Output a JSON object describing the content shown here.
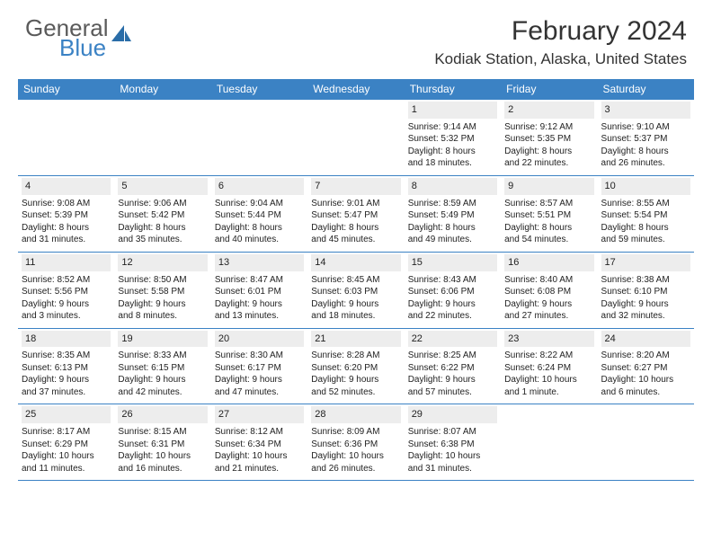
{
  "logo": {
    "text1": "General",
    "text2": "Blue"
  },
  "title": "February 2024",
  "location": "Kodiak Station, Alaska, United States",
  "colors": {
    "header_bg": "#3b82c4",
    "daynum_bg": "#ededed",
    "text": "#222222",
    "logo_gray": "#5a5a5a",
    "logo_blue": "#3b82c4"
  },
  "weekdays": [
    "Sunday",
    "Monday",
    "Tuesday",
    "Wednesday",
    "Thursday",
    "Friday",
    "Saturday"
  ],
  "weeks": [
    [
      {
        "empty": true
      },
      {
        "empty": true
      },
      {
        "empty": true
      },
      {
        "empty": true
      },
      {
        "day": "1",
        "sunrise": "Sunrise: 9:14 AM",
        "sunset": "Sunset: 5:32 PM",
        "dl1": "Daylight: 8 hours",
        "dl2": "and 18 minutes."
      },
      {
        "day": "2",
        "sunrise": "Sunrise: 9:12 AM",
        "sunset": "Sunset: 5:35 PM",
        "dl1": "Daylight: 8 hours",
        "dl2": "and 22 minutes."
      },
      {
        "day": "3",
        "sunrise": "Sunrise: 9:10 AM",
        "sunset": "Sunset: 5:37 PM",
        "dl1": "Daylight: 8 hours",
        "dl2": "and 26 minutes."
      }
    ],
    [
      {
        "day": "4",
        "sunrise": "Sunrise: 9:08 AM",
        "sunset": "Sunset: 5:39 PM",
        "dl1": "Daylight: 8 hours",
        "dl2": "and 31 minutes."
      },
      {
        "day": "5",
        "sunrise": "Sunrise: 9:06 AM",
        "sunset": "Sunset: 5:42 PM",
        "dl1": "Daylight: 8 hours",
        "dl2": "and 35 minutes."
      },
      {
        "day": "6",
        "sunrise": "Sunrise: 9:04 AM",
        "sunset": "Sunset: 5:44 PM",
        "dl1": "Daylight: 8 hours",
        "dl2": "and 40 minutes."
      },
      {
        "day": "7",
        "sunrise": "Sunrise: 9:01 AM",
        "sunset": "Sunset: 5:47 PM",
        "dl1": "Daylight: 8 hours",
        "dl2": "and 45 minutes."
      },
      {
        "day": "8",
        "sunrise": "Sunrise: 8:59 AM",
        "sunset": "Sunset: 5:49 PM",
        "dl1": "Daylight: 8 hours",
        "dl2": "and 49 minutes."
      },
      {
        "day": "9",
        "sunrise": "Sunrise: 8:57 AM",
        "sunset": "Sunset: 5:51 PM",
        "dl1": "Daylight: 8 hours",
        "dl2": "and 54 minutes."
      },
      {
        "day": "10",
        "sunrise": "Sunrise: 8:55 AM",
        "sunset": "Sunset: 5:54 PM",
        "dl1": "Daylight: 8 hours",
        "dl2": "and 59 minutes."
      }
    ],
    [
      {
        "day": "11",
        "sunrise": "Sunrise: 8:52 AM",
        "sunset": "Sunset: 5:56 PM",
        "dl1": "Daylight: 9 hours",
        "dl2": "and 3 minutes."
      },
      {
        "day": "12",
        "sunrise": "Sunrise: 8:50 AM",
        "sunset": "Sunset: 5:58 PM",
        "dl1": "Daylight: 9 hours",
        "dl2": "and 8 minutes."
      },
      {
        "day": "13",
        "sunrise": "Sunrise: 8:47 AM",
        "sunset": "Sunset: 6:01 PM",
        "dl1": "Daylight: 9 hours",
        "dl2": "and 13 minutes."
      },
      {
        "day": "14",
        "sunrise": "Sunrise: 8:45 AM",
        "sunset": "Sunset: 6:03 PM",
        "dl1": "Daylight: 9 hours",
        "dl2": "and 18 minutes."
      },
      {
        "day": "15",
        "sunrise": "Sunrise: 8:43 AM",
        "sunset": "Sunset: 6:06 PM",
        "dl1": "Daylight: 9 hours",
        "dl2": "and 22 minutes."
      },
      {
        "day": "16",
        "sunrise": "Sunrise: 8:40 AM",
        "sunset": "Sunset: 6:08 PM",
        "dl1": "Daylight: 9 hours",
        "dl2": "and 27 minutes."
      },
      {
        "day": "17",
        "sunrise": "Sunrise: 8:38 AM",
        "sunset": "Sunset: 6:10 PM",
        "dl1": "Daylight: 9 hours",
        "dl2": "and 32 minutes."
      }
    ],
    [
      {
        "day": "18",
        "sunrise": "Sunrise: 8:35 AM",
        "sunset": "Sunset: 6:13 PM",
        "dl1": "Daylight: 9 hours",
        "dl2": "and 37 minutes."
      },
      {
        "day": "19",
        "sunrise": "Sunrise: 8:33 AM",
        "sunset": "Sunset: 6:15 PM",
        "dl1": "Daylight: 9 hours",
        "dl2": "and 42 minutes."
      },
      {
        "day": "20",
        "sunrise": "Sunrise: 8:30 AM",
        "sunset": "Sunset: 6:17 PM",
        "dl1": "Daylight: 9 hours",
        "dl2": "and 47 minutes."
      },
      {
        "day": "21",
        "sunrise": "Sunrise: 8:28 AM",
        "sunset": "Sunset: 6:20 PM",
        "dl1": "Daylight: 9 hours",
        "dl2": "and 52 minutes."
      },
      {
        "day": "22",
        "sunrise": "Sunrise: 8:25 AM",
        "sunset": "Sunset: 6:22 PM",
        "dl1": "Daylight: 9 hours",
        "dl2": "and 57 minutes."
      },
      {
        "day": "23",
        "sunrise": "Sunrise: 8:22 AM",
        "sunset": "Sunset: 6:24 PM",
        "dl1": "Daylight: 10 hours",
        "dl2": "and 1 minute."
      },
      {
        "day": "24",
        "sunrise": "Sunrise: 8:20 AM",
        "sunset": "Sunset: 6:27 PM",
        "dl1": "Daylight: 10 hours",
        "dl2": "and 6 minutes."
      }
    ],
    [
      {
        "day": "25",
        "sunrise": "Sunrise: 8:17 AM",
        "sunset": "Sunset: 6:29 PM",
        "dl1": "Daylight: 10 hours",
        "dl2": "and 11 minutes."
      },
      {
        "day": "26",
        "sunrise": "Sunrise: 8:15 AM",
        "sunset": "Sunset: 6:31 PM",
        "dl1": "Daylight: 10 hours",
        "dl2": "and 16 minutes."
      },
      {
        "day": "27",
        "sunrise": "Sunrise: 8:12 AM",
        "sunset": "Sunset: 6:34 PM",
        "dl1": "Daylight: 10 hours",
        "dl2": "and 21 minutes."
      },
      {
        "day": "28",
        "sunrise": "Sunrise: 8:09 AM",
        "sunset": "Sunset: 6:36 PM",
        "dl1": "Daylight: 10 hours",
        "dl2": "and 26 minutes."
      },
      {
        "day": "29",
        "sunrise": "Sunrise: 8:07 AM",
        "sunset": "Sunset: 6:38 PM",
        "dl1": "Daylight: 10 hours",
        "dl2": "and 31 minutes."
      },
      {
        "empty": true
      },
      {
        "empty": true
      }
    ]
  ]
}
